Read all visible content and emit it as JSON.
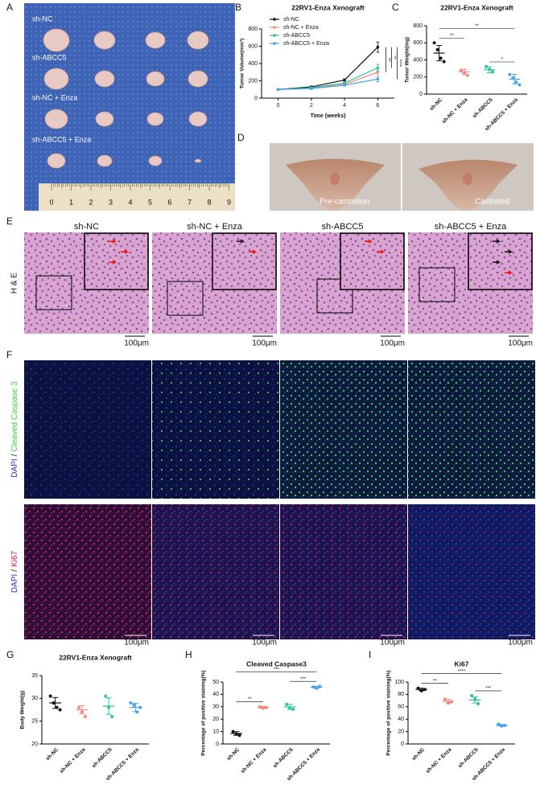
{
  "panel_labels": [
    "A",
    "B",
    "C",
    "D",
    "E",
    "F",
    "G",
    "H",
    "I"
  ],
  "tumor_photo": {
    "groups": [
      "sh-NC",
      "sh-ABCC5",
      "sh-NC + Enza",
      "sh-ABCC5 + Enza"
    ],
    "ruler": [
      "0",
      "1",
      "2",
      "3",
      "4",
      "5",
      "6",
      "7",
      "8",
      "9"
    ]
  },
  "castration_photo": {
    "labels": [
      "Pre-castration",
      "Castrated"
    ]
  },
  "he_staining": {
    "columns": [
      "sh-NC",
      "sh-NC + Enza",
      "sh-ABCC5",
      "sh-ABCC5 + Enza"
    ],
    "row_label": "H & E",
    "scale_bar": "100μm"
  },
  "immunofluorescence": {
    "separator": "/",
    "rows": [
      {
        "stain": "DAPI",
        "marker": "Cleaved Caspase 3"
      },
      {
        "stain": "DAPI",
        "marker": "Ki67"
      }
    ],
    "scale_bar": "100μm"
  },
  "chart_data": [
    {
      "type": "line",
      "title": "22RV1-Enza Xenograft",
      "xlabel": "Time (weeks)",
      "ylabel": "Tumor Volume(mm³)",
      "x": [
        0,
        2,
        4,
        6
      ],
      "xlim": [
        -1,
        7
      ],
      "xticks": [
        0,
        2,
        4,
        6
      ],
      "ylim": [
        0,
        800
      ],
      "yticks": [
        0,
        200,
        400,
        600,
        800
      ],
      "legend": "upper left",
      "series": [
        {
          "name": "sh-NC",
          "color": "#111111",
          "values": [
            100,
            130,
            210,
            590
          ],
          "errors": [
            5,
            10,
            12,
            60
          ]
        },
        {
          "name": "sh-NC + Enza",
          "color": "#f08a80",
          "values": [
            100,
            115,
            160,
            300
          ],
          "errors": [
            5,
            8,
            10,
            30
          ]
        },
        {
          "name": "sh-ABCC5",
          "color": "#2fc39a",
          "values": [
            100,
            120,
            175,
            350
          ],
          "errors": [
            5,
            8,
            12,
            40
          ]
        },
        {
          "name": "sh-ABCC5 + Enza",
          "color": "#4aa3e8",
          "values": [
            100,
            110,
            150,
            220
          ],
          "errors": [
            5,
            6,
            10,
            30
          ]
        }
      ],
      "significance": [
        {
          "series": [
            0,
            1
          ],
          "label": "**"
        },
        {
          "series": [
            0,
            2
          ],
          "label": "**"
        },
        {
          "series": [
            0,
            3
          ],
          "label": "****"
        }
      ]
    },
    {
      "type": "strip",
      "title": "22RV1-Enza Xenograft",
      "ylabel": "Tumor Weight(mg)",
      "ylim": [
        0,
        800
      ],
      "yticks": [
        0,
        200,
        400,
        600,
        800
      ],
      "categories": [
        "sh-NC",
        "sh-NC + Enza",
        "sh-ABCC5",
        "sh-ABCC5 + Enza"
      ],
      "groups": [
        {
          "color": "#111111",
          "points": [
            600,
            520,
            420,
            380
          ],
          "mean": 480,
          "sd": 90
        },
        {
          "color": "#f08a80",
          "points": [
            280,
            250,
            220
          ],
          "mean": 260,
          "sd": 30
        },
        {
          "color": "#2fc39a",
          "points": [
            320,
            290,
            260
          ],
          "mean": 285,
          "sd": 35
        },
        {
          "color": "#4aa3e8",
          "points": [
            230,
            190,
            140,
            110
          ],
          "mean": 175,
          "sd": 55
        }
      ],
      "significance": [
        {
          "groups": [
            0,
            1
          ],
          "label": "**"
        },
        {
          "groups": [
            0,
            3
          ],
          "label": "**"
        },
        {
          "groups": [
            2,
            3
          ],
          "label": "*"
        }
      ]
    },
    {
      "type": "strip",
      "title": "22RV1-Enza Xenograft",
      "ylabel": "Body Weight(g)",
      "ylim": [
        20,
        35
      ],
      "yticks": [
        20,
        25,
        30,
        35
      ],
      "categories": [
        "sh-NC",
        "sh-NC + Enza",
        "sh-ABCC5",
        "sh-ABCC5 + Enza"
      ],
      "groups": [
        {
          "color": "#111111",
          "points": [
            30.5,
            29,
            28,
            27.5
          ],
          "mean": 29,
          "sd": 1.2
        },
        {
          "color": "#f08a80",
          "points": [
            28,
            27,
            26
          ],
          "mean": 27.5,
          "sd": 0.9
        },
        {
          "color": "#2fc39a",
          "points": [
            30.5,
            28,
            26
          ],
          "mean": 28.3,
          "sd": 1.8
        },
        {
          "color": "#4aa3e8",
          "points": [
            29,
            28.5,
            27,
            28
          ],
          "mean": 28,
          "sd": 0.9
        }
      ],
      "significance": []
    },
    {
      "type": "strip",
      "title": "Cleaved Caspase3",
      "ylabel": "Percentage of positive staining(%)",
      "ylim": [
        0,
        50
      ],
      "yticks": [
        0,
        10,
        20,
        30,
        40,
        50
      ],
      "categories": [
        "sh-NC",
        "sh-NC + Enza",
        "sh-ABCC5",
        "sh-ABCC5 + Enza"
      ],
      "groups": [
        {
          "color": "#111111",
          "points": [
            10,
            8,
            7
          ],
          "mean": 8.5,
          "sd": 1.5
        },
        {
          "color": "#f08a80",
          "points": [
            30,
            29,
            29.5
          ],
          "mean": 29.5,
          "sd": 0.8
        },
        {
          "color": "#2fc39a",
          "points": [
            32,
            29,
            28
          ],
          "mean": 30,
          "sd": 2
        },
        {
          "color": "#4aa3e8",
          "points": [
            46,
            45,
            46.5
          ],
          "mean": 45.8,
          "sd": 0.8
        }
      ],
      "significance": [
        {
          "groups": [
            0,
            1
          ],
          "label": "**"
        },
        {
          "groups": [
            0,
            3
          ],
          "label": "***"
        },
        {
          "groups": [
            2,
            3
          ],
          "label": "***"
        }
      ]
    },
    {
      "type": "strip",
      "title": "Ki67",
      "ylabel": "Percentage of positive staining(%)",
      "ylim": [
        0,
        100
      ],
      "yticks": [
        0,
        20,
        40,
        60,
        80,
        100
      ],
      "categories": [
        "sh-NC",
        "sh-NC + Enza",
        "sh-ABCC5",
        "sh-ABCC5 + Enza"
      ],
      "groups": [
        {
          "color": "#111111",
          "points": [
            90,
            86,
            88
          ],
          "mean": 88,
          "sd": 2
        },
        {
          "color": "#f08a80",
          "points": [
            72,
            66,
            68
          ],
          "mean": 69,
          "sd": 3
        },
        {
          "color": "#2fc39a",
          "points": [
            78,
            72,
            65
          ],
          "mean": 71,
          "sd": 5
        },
        {
          "color": "#4aa3e8",
          "points": [
            32,
            29,
            30
          ],
          "mean": 30,
          "sd": 1.5
        }
      ],
      "significance": [
        {
          "groups": [
            0,
            1
          ],
          "label": "**"
        },
        {
          "groups": [
            0,
            3
          ],
          "label": "****"
        },
        {
          "groups": [
            2,
            3
          ],
          "label": "***"
        }
      ]
    }
  ]
}
